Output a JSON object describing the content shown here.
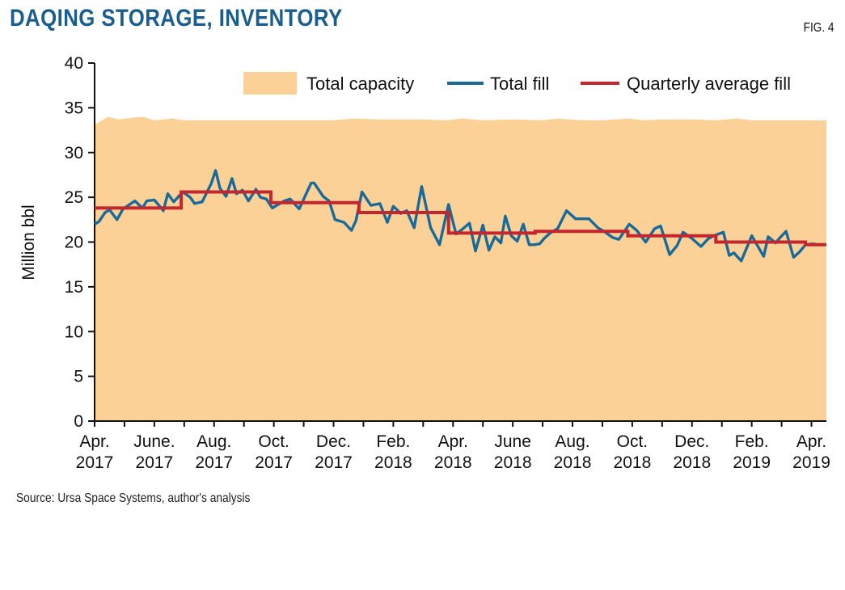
{
  "header": {
    "title": "DAQING STORAGE, INVENTORY",
    "fig_label": "FIG. 4"
  },
  "footer": {
    "source": "Source: Ursa Space Systems, author's analysis"
  },
  "colors": {
    "title": "#1a5d8f",
    "capacity": "#fcd197",
    "fill_line": "#1a6a99",
    "avg_line": "#c4262e",
    "axis": "#111111"
  },
  "chart_data": {
    "type": "line",
    "ylabel": "Million bbl",
    "ylim": [
      0,
      40
    ],
    "yticks": [
      0,
      5,
      10,
      15,
      20,
      25,
      30,
      35,
      40
    ],
    "xlim": [
      0,
      24.5
    ],
    "x_unit": "months since Apr. 2017",
    "xticks": [
      {
        "x": 0,
        "line1": "Apr.",
        "line2": "2017"
      },
      {
        "x": 2,
        "line1": "June.",
        "line2": "2017"
      },
      {
        "x": 4,
        "line1": "Aug.",
        "line2": "2017"
      },
      {
        "x": 6,
        "line1": "Oct.",
        "line2": "2017"
      },
      {
        "x": 8,
        "line1": "Dec.",
        "line2": "2017"
      },
      {
        "x": 10,
        "line1": "Feb.",
        "line2": "2018"
      },
      {
        "x": 12,
        "line1": "Apr.",
        "line2": "2018"
      },
      {
        "x": 14,
        "line1": "June",
        "line2": "2018"
      },
      {
        "x": 16,
        "line1": "Aug.",
        "line2": "2018"
      },
      {
        "x": 18,
        "line1": "Oct.",
        "line2": "2018"
      },
      {
        "x": 20,
        "line1": "Dec.",
        "line2": "2018"
      },
      {
        "x": 22,
        "line1": "Feb.",
        "line2": "2019"
      },
      {
        "x": 24,
        "line1": "Apr.",
        "line2": "2019"
      }
    ],
    "legend": {
      "placement": "top",
      "items": [
        "Total capacity",
        "Total fill",
        "Quarterly average fill"
      ]
    },
    "series": [
      {
        "name": "Total capacity",
        "kind": "area",
        "x": [
          0,
          0.2,
          0.45,
          0.8,
          1.3,
          1.6,
          2.0,
          2.6,
          3.0,
          4.0,
          5.0,
          6.0,
          7.0,
          8.0,
          8.7,
          9.5,
          10.0,
          11.0,
          11.8,
          12.3,
          13.0,
          14.0,
          15.0,
          15.5,
          16.3,
          17.0,
          17.9,
          18.4,
          19.0,
          20.0,
          20.8,
          21.5,
          22.0,
          23.0,
          24.0,
          24.5
        ],
        "values": [
          33.1,
          33.5,
          34.0,
          33.7,
          33.9,
          34.0,
          33.6,
          33.8,
          33.6,
          33.6,
          33.6,
          33.6,
          33.6,
          33.6,
          33.8,
          33.7,
          33.7,
          33.7,
          33.6,
          33.8,
          33.6,
          33.7,
          33.6,
          33.8,
          33.6,
          33.6,
          33.8,
          33.6,
          33.7,
          33.7,
          33.6,
          33.8,
          33.6,
          33.6,
          33.6,
          33.6
        ]
      },
      {
        "name": "Total fill",
        "kind": "line",
        "x": [
          0,
          0.15,
          0.35,
          0.5,
          0.75,
          0.95,
          1.35,
          1.6,
          1.75,
          2.0,
          2.3,
          2.45,
          2.65,
          2.95,
          3.2,
          3.35,
          3.6,
          3.9,
          4.05,
          4.2,
          4.4,
          4.6,
          4.75,
          4.95,
          5.15,
          5.4,
          5.55,
          5.75,
          5.95,
          6.1,
          6.35,
          6.55,
          6.85,
          7.25,
          7.35,
          7.65,
          7.85,
          8.05,
          8.35,
          8.6,
          8.75,
          8.95,
          9.25,
          9.55,
          9.8,
          10.0,
          10.25,
          10.45,
          10.7,
          10.95,
          11.25,
          11.55,
          11.85,
          12.1,
          12.3,
          12.55,
          12.75,
          13.0,
          13.2,
          13.4,
          13.6,
          13.75,
          13.95,
          14.15,
          14.35,
          14.55,
          14.7,
          14.9,
          15.05,
          15.25,
          15.5,
          15.8,
          16.1,
          16.3,
          16.55,
          16.85,
          17.05,
          17.35,
          17.55,
          17.9,
          18.15,
          18.45,
          18.75,
          18.95,
          19.25,
          19.5,
          19.7,
          20.0,
          20.3,
          20.55,
          20.8,
          21.05,
          21.25,
          21.4,
          21.65,
          22.0,
          22.4,
          22.55,
          22.8,
          22.95,
          23.15,
          23.4,
          23.6,
          23.8,
          24.05,
          24.2,
          24.5
        ],
        "values": [
          22.0,
          22.3,
          23.3,
          23.6,
          22.5,
          23.7,
          24.6,
          23.8,
          24.6,
          24.7,
          23.5,
          25.4,
          24.5,
          25.6,
          25.0,
          24.3,
          24.5,
          26.5,
          28.0,
          26.0,
          25.1,
          27.1,
          25.4,
          25.8,
          24.6,
          25.9,
          25.0,
          24.8,
          23.8,
          24.1,
          24.6,
          24.8,
          23.7,
          26.6,
          26.6,
          25.1,
          24.6,
          22.5,
          22.2,
          21.3,
          22.4,
          25.6,
          24.1,
          24.3,
          22.2,
          24.0,
          23.2,
          23.5,
          21.6,
          26.2,
          21.6,
          19.7,
          24.2,
          20.9,
          21.4,
          22.1,
          19.0,
          21.9,
          19.1,
          20.6,
          19.9,
          22.9,
          20.7,
          20.1,
          22.0,
          19.7,
          19.7,
          19.8,
          20.4,
          21.0,
          21.5,
          23.5,
          22.6,
          22.6,
          22.6,
          21.6,
          21.2,
          20.5,
          20.3,
          22.0,
          21.3,
          20.0,
          21.5,
          21.8,
          18.6,
          19.6,
          21.1,
          20.4,
          19.5,
          20.4,
          20.8,
          21.1,
          18.5,
          18.8,
          17.9,
          20.7,
          18.4,
          20.6,
          19.9,
          20.5,
          21.2,
          18.3,
          18.9,
          19.7,
          19.8,
          19.7,
          19.7
        ]
      },
      {
        "name": "Quarterly average fill",
        "kind": "step",
        "x": [
          0,
          2.9,
          2.9,
          5.9,
          5.9,
          8.85,
          8.85,
          11.85,
          11.85,
          14.75,
          14.75,
          17.85,
          17.85,
          20.8,
          20.8,
          23.8,
          23.8,
          24.5
        ],
        "values": [
          23.8,
          23.8,
          25.6,
          25.6,
          24.4,
          24.4,
          23.3,
          23.3,
          21.0,
          21.0,
          21.2,
          21.2,
          20.7,
          20.7,
          20.0,
          20.0,
          19.7,
          19.7
        ]
      }
    ]
  }
}
